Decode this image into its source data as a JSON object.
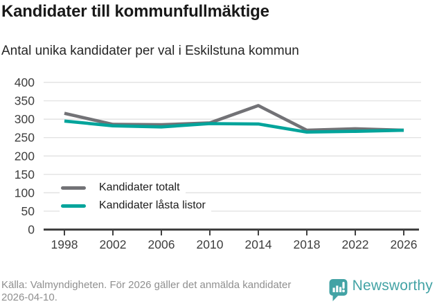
{
  "header": {
    "title": "Kandidater till kommunfullmäktige",
    "subtitle": "Antal unika kandidater per val i Eskilstuna kommun"
  },
  "chart_data": {
    "type": "line",
    "x": [
      1998,
      2002,
      2006,
      2010,
      2014,
      2018,
      2022,
      2026
    ],
    "series": [
      {
        "name": "Kandidater totalt",
        "color": "#727276",
        "values": [
          316,
          286,
          285,
          290,
          337,
          270,
          274,
          270
        ]
      },
      {
        "name": "Kandidater låsta listor",
        "color": "#00a49b",
        "values": [
          295,
          282,
          279,
          288,
          287,
          265,
          267,
          270
        ]
      }
    ],
    "ylim": [
      0,
      400
    ],
    "yticks": [
      0,
      50,
      100,
      150,
      200,
      250,
      300,
      350,
      400
    ],
    "grid": true,
    "legend_position": "inside bottom-left",
    "xlabel": "",
    "ylabel": ""
  },
  "footer": {
    "source": "Källa: Valmyndigheten. För 2026 gäller det anmälda kandidater 2026-04-10.",
    "brand": "Newsworthy"
  },
  "icons": {
    "brand_icon": "speech-bubble-bar-chart-exclamation"
  },
  "colors": {
    "accent_teal": "#00a49b",
    "series_gray": "#727276",
    "brand_teal": "#43a3a5",
    "grid_line": "#e3e3e3",
    "axis_line": "#414141",
    "axis_text": "#3e3e3e",
    "title_text": "#191919",
    "muted_text": "#8f8f8f"
  }
}
